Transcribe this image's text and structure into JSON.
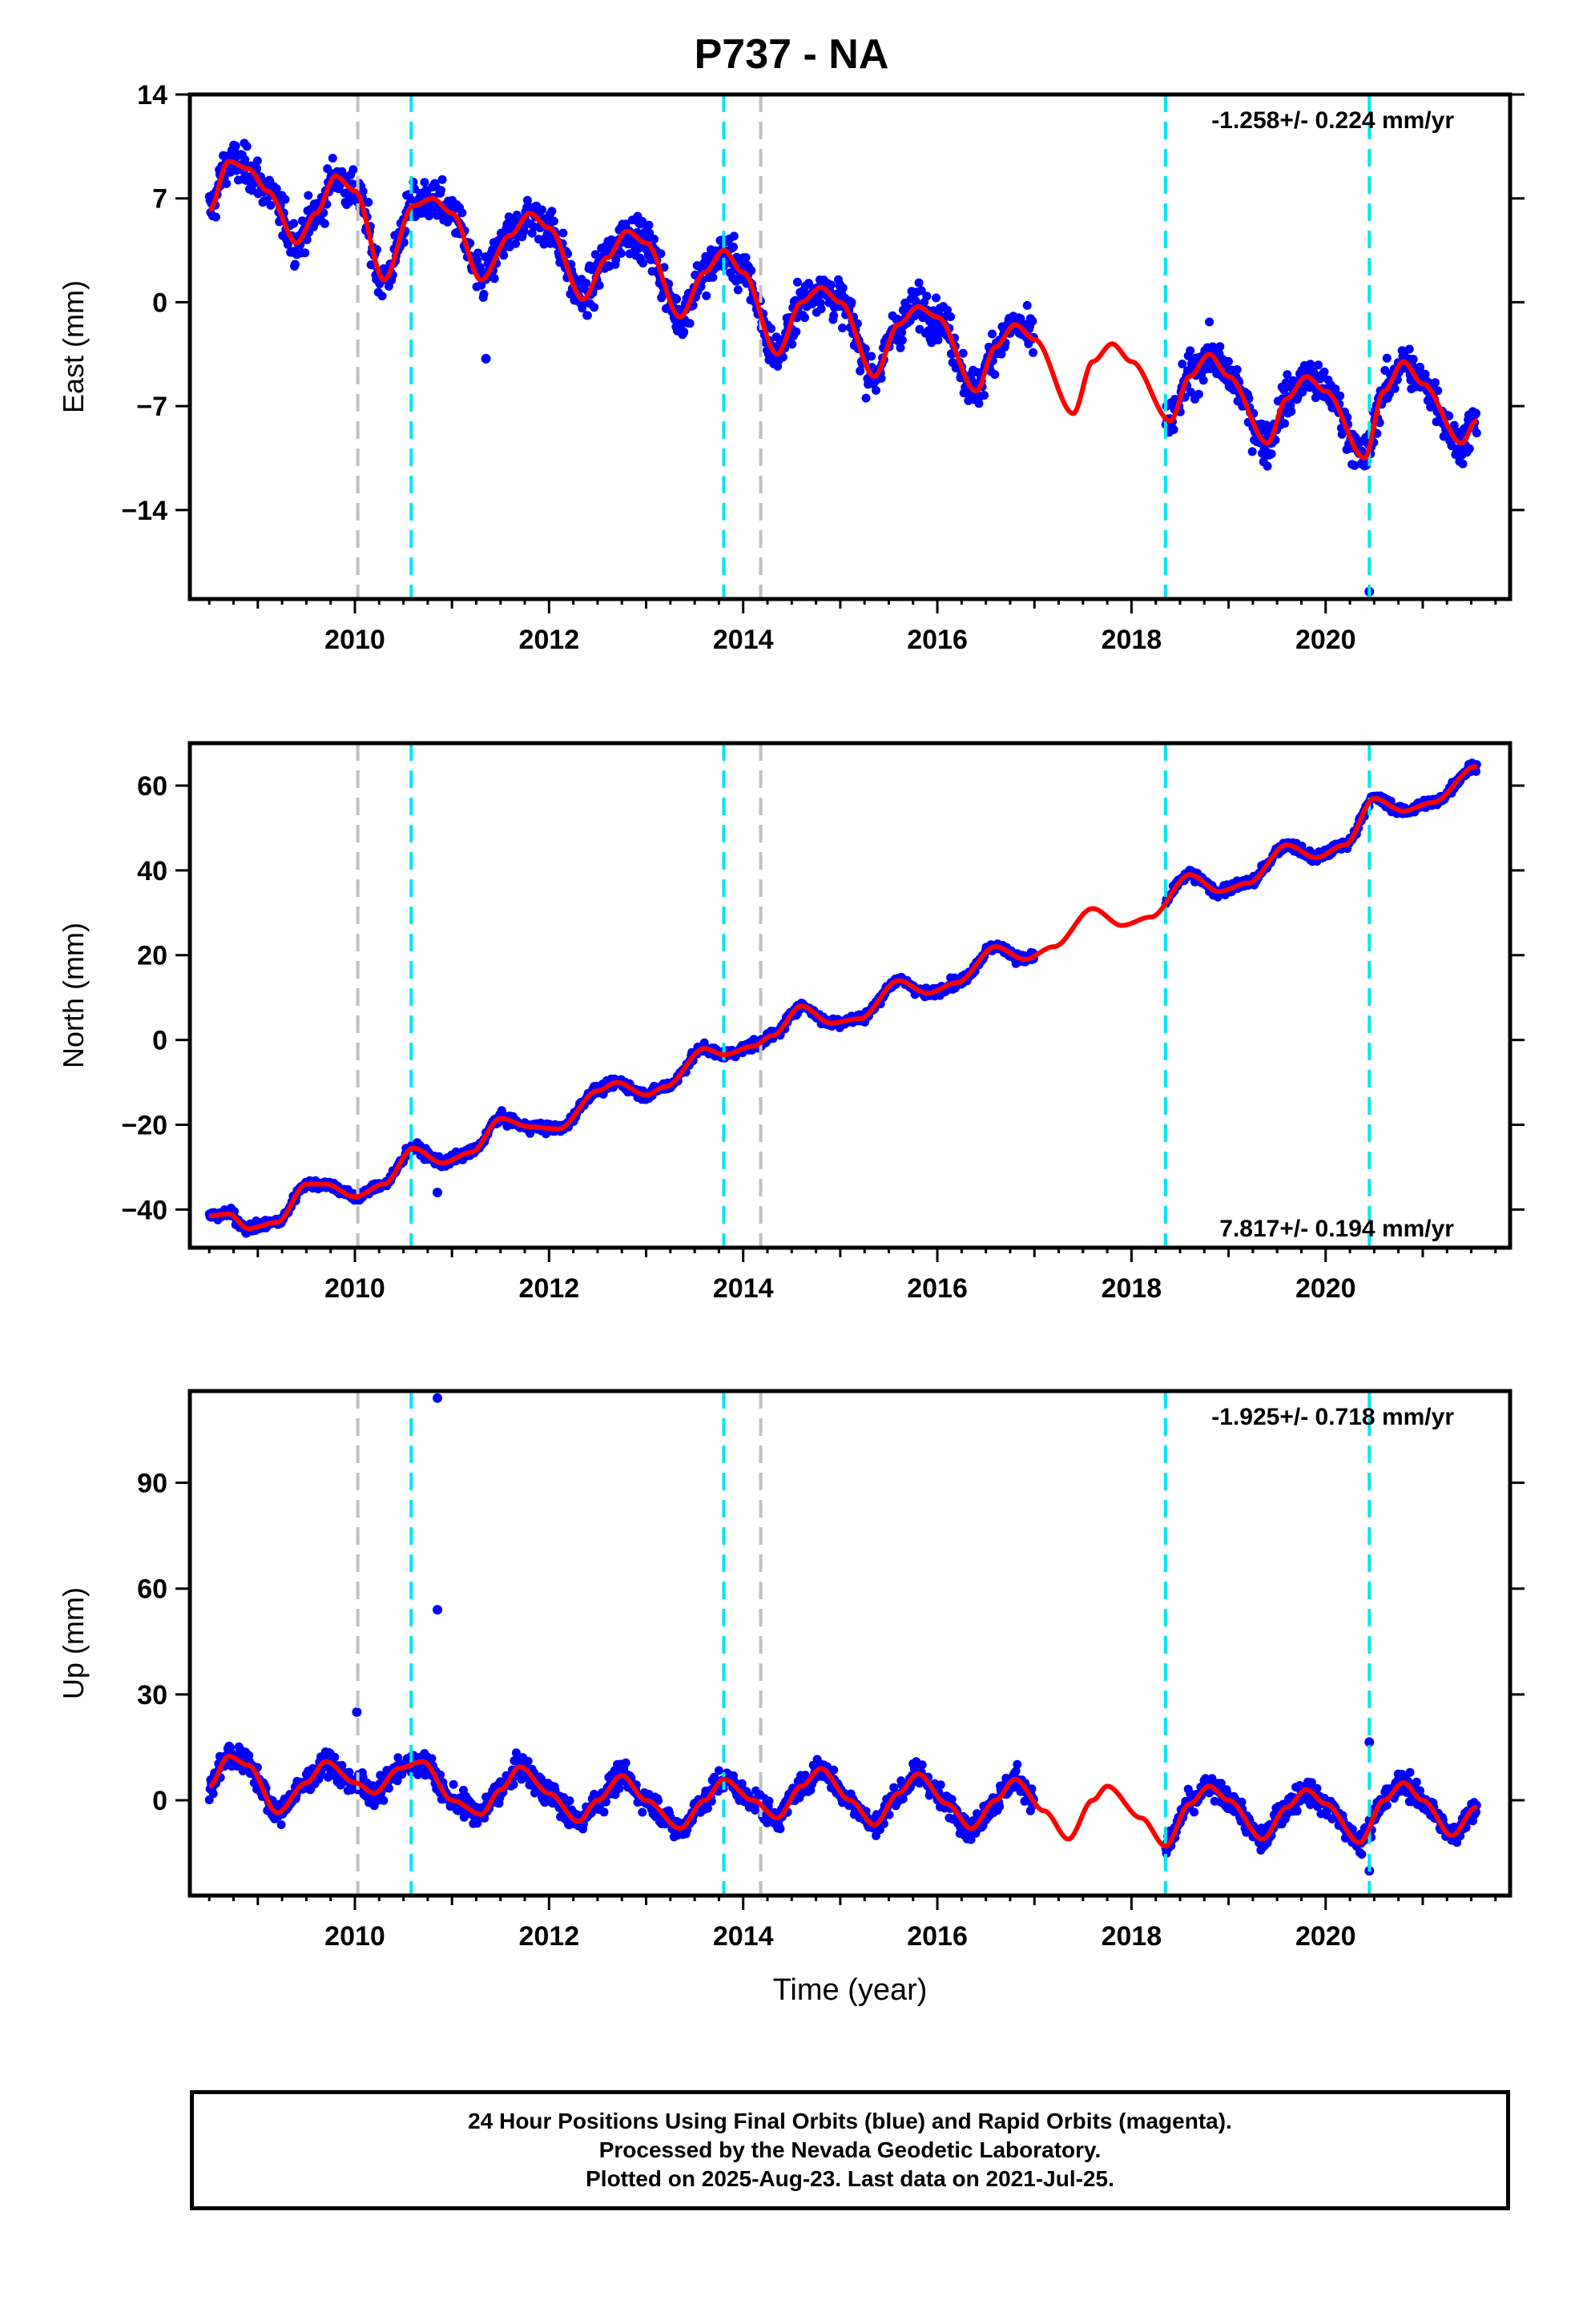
{
  "title": "P737 - NA",
  "caption": [
    "24 Hour Positions Using Final Orbits (blue) and Rapid Orbits (magenta).",
    "Processed by the Nevada Geodetic Laboratory.",
    "Plotted on 2025-Aug-23. Last data on 2021-Jul-25."
  ],
  "colors": {
    "points": "#0000ff",
    "fit": "#ff0000",
    "offset_equipment": "#00e5ee",
    "offset_other": "#c0c0c0"
  },
  "chart_data": [
    {
      "type": "scatter",
      "name": "east",
      "ylabel": "East (mm)",
      "xlabel": "",
      "xlim": [
        2008.3,
        2021.9
      ],
      "ylim": [
        -20,
        14
      ],
      "yticks": [
        -14,
        -7,
        0,
        7,
        14
      ],
      "ytick_labels": [
        "−14",
        "−7",
        "0",
        "7",
        "14"
      ],
      "xticks": [
        2010,
        2012,
        2014,
        2016,
        2018,
        2020
      ],
      "rate_label": "-1.258+/- 0.224 mm/yr",
      "rate_position": "top-right",
      "rate": -1.258,
      "annual_amplitude": 4.0,
      "scatter": 1.3,
      "fit_points": [
        [
          2008.5,
          6.2
        ],
        [
          2008.7,
          9.5
        ],
        [
          2008.9,
          9.0
        ],
        [
          2009.1,
          7.5
        ],
        [
          2009.4,
          4.0
        ],
        [
          2009.6,
          6.0
        ],
        [
          2009.8,
          8.5
        ],
        [
          2010.0,
          7.5
        ],
        [
          2010.3,
          1.5
        ],
        [
          2010.6,
          6.5
        ],
        [
          2010.8,
          7.0
        ],
        [
          2011.0,
          6.0
        ],
        [
          2011.3,
          1.5
        ],
        [
          2011.6,
          4.5
        ],
        [
          2011.8,
          6.0
        ],
        [
          2012.0,
          5.0
        ],
        [
          2012.35,
          0.2
        ],
        [
          2012.6,
          3.0
        ],
        [
          2012.8,
          4.8
        ],
        [
          2013.0,
          4.0
        ],
        [
          2013.35,
          -1.0
        ],
        [
          2013.6,
          2.0
        ],
        [
          2013.8,
          3.5
        ],
        [
          2014.0,
          2.0
        ],
        [
          2014.35,
          -3.5
        ],
        [
          2014.6,
          0.0
        ],
        [
          2014.8,
          1.0
        ],
        [
          2015.0,
          0.0
        ],
        [
          2015.35,
          -5.0
        ],
        [
          2015.6,
          -1.5
        ],
        [
          2015.8,
          -0.3
        ],
        [
          2016.0,
          -1.0
        ],
        [
          2016.4,
          -6.0
        ],
        [
          2016.6,
          -3.0
        ],
        [
          2016.8,
          -1.5
        ],
        [
          2017.0,
          -2.5
        ],
        [
          2017.4,
          -7.5
        ],
        [
          2017.6,
          -4.0
        ],
        [
          2017.8,
          -2.8
        ],
        [
          2018.0,
          -4.0
        ],
        [
          2018.4,
          -8.0
        ],
        [
          2018.6,
          -5.0
        ],
        [
          2018.8,
          -3.5
        ],
        [
          2019.0,
          -5.0
        ],
        [
          2019.4,
          -9.5
        ],
        [
          2019.6,
          -6.5
        ],
        [
          2019.8,
          -5.0
        ],
        [
          2020.0,
          -6.0
        ],
        [
          2020.4,
          -10.5
        ],
        [
          2020.6,
          -6.0
        ],
        [
          2020.8,
          -4.0
        ],
        [
          2021.0,
          -5.5
        ],
        [
          2021.4,
          -9.5
        ],
        [
          2021.55,
          -8.0
        ]
      ],
      "outliers": [
        [
          2020.45,
          -19.5
        ],
        [
          2011.35,
          -3.8
        ]
      ]
    },
    {
      "type": "scatter",
      "name": "north",
      "ylabel": "North (mm)",
      "xlabel": "",
      "xlim": [
        2008.3,
        2021.9
      ],
      "ylim": [
        -49,
        70
      ],
      "yticks": [
        -40,
        -20,
        0,
        20,
        40,
        60
      ],
      "ytick_labels": [
        "−40",
        "−20",
        "0",
        "20",
        "40",
        "60"
      ],
      "xticks": [
        2010,
        2012,
        2014,
        2016,
        2018,
        2020
      ],
      "rate_label": "7.817+/- 0.194 mm/yr",
      "rate_position": "bottom-right",
      "rate": 7.817,
      "annual_amplitude": 2.5,
      "scatter": 1.1,
      "fit_points": [
        [
          2008.5,
          -41.5
        ],
        [
          2008.7,
          -41.0
        ],
        [
          2008.9,
          -44.5
        ],
        [
          2009.2,
          -43.0
        ],
        [
          2009.5,
          -34.0
        ],
        [
          2009.7,
          -34.0
        ],
        [
          2010.0,
          -37.0
        ],
        [
          2010.3,
          -34.0
        ],
        [
          2010.6,
          -25.5
        ],
        [
          2010.9,
          -29.0
        ],
        [
          2011.2,
          -26.5
        ],
        [
          2011.5,
          -18.5
        ],
        [
          2011.8,
          -20.5
        ],
        [
          2012.1,
          -21.0
        ],
        [
          2012.5,
          -12.0
        ],
        [
          2012.7,
          -10.0
        ],
        [
          2013.0,
          -13.0
        ],
        [
          2013.2,
          -11.0
        ],
        [
          2013.6,
          -2.0
        ],
        [
          2013.8,
          -3.5
        ],
        [
          2014.1,
          -1.5
        ],
        [
          2014.3,
          1.0
        ],
        [
          2014.6,
          8.0
        ],
        [
          2014.9,
          4.0
        ],
        [
          2015.2,
          5.0
        ],
        [
          2015.6,
          14.0
        ],
        [
          2015.9,
          11.0
        ],
        [
          2016.2,
          13.5
        ],
        [
          2016.6,
          22.0
        ],
        [
          2016.9,
          19.0
        ],
        [
          2017.2,
          22.0
        ],
        [
          2017.6,
          31.0
        ],
        [
          2017.9,
          27.0
        ],
        [
          2018.2,
          29.0
        ],
        [
          2018.6,
          39.0
        ],
        [
          2018.9,
          35.0
        ],
        [
          2019.2,
          37.0
        ],
        [
          2019.6,
          46.0
        ],
        [
          2019.9,
          43.0
        ],
        [
          2020.2,
          46.0
        ],
        [
          2020.5,
          57.0
        ],
        [
          2020.8,
          54.0
        ],
        [
          2021.1,
          56.0
        ],
        [
          2021.55,
          64.5
        ]
      ],
      "outliers": [
        [
          2010.85,
          -36.0
        ]
      ]
    },
    {
      "type": "scatter",
      "name": "up",
      "ylabel": "Up (mm)",
      "xlabel": "Time (year)",
      "xlim": [
        2008.3,
        2021.9
      ],
      "ylim": [
        -27,
        116
      ],
      "yticks": [
        0,
        30,
        60,
        90
      ],
      "ytick_labels": [
        "0",
        "30",
        "60",
        "90"
      ],
      "xticks": [
        2010,
        2012,
        2014,
        2016,
        2018,
        2020
      ],
      "rate_label": "-1.925+/- 0.718 mm/yr",
      "rate_position": "top-right",
      "rate": -1.925,
      "annual_amplitude": 8.0,
      "scatter": 3.2,
      "fit_points": [
        [
          2008.5,
          4.0
        ],
        [
          2008.7,
          12.5
        ],
        [
          2008.9,
          10.0
        ],
        [
          2009.2,
          -3.5
        ],
        [
          2009.5,
          5.0
        ],
        [
          2009.7,
          11.0
        ],
        [
          2010.0,
          5.0
        ],
        [
          2010.2,
          2.0
        ],
        [
          2010.45,
          9.0
        ],
        [
          2010.7,
          11.0
        ],
        [
          2011.0,
          0.0
        ],
        [
          2011.3,
          -4.0
        ],
        [
          2011.5,
          3.0
        ],
        [
          2011.7,
          9.5
        ],
        [
          2012.0,
          2.0
        ],
        [
          2012.3,
          -6.0
        ],
        [
          2012.5,
          0.0
        ],
        [
          2012.75,
          7.0
        ],
        [
          2013.0,
          0.0
        ],
        [
          2013.35,
          -8.0
        ],
        [
          2013.6,
          0.0
        ],
        [
          2013.8,
          6.0
        ],
        [
          2014.1,
          0.0
        ],
        [
          2014.35,
          -5.0
        ],
        [
          2014.6,
          4.0
        ],
        [
          2014.8,
          9.0
        ],
        [
          2015.1,
          0.0
        ],
        [
          2015.35,
          -7.0
        ],
        [
          2015.6,
          2.0
        ],
        [
          2015.8,
          7.5
        ],
        [
          2016.1,
          -1.0
        ],
        [
          2016.35,
          -8.0
        ],
        [
          2016.6,
          0.0
        ],
        [
          2016.8,
          6.0
        ],
        [
          2017.1,
          -3.0
        ],
        [
          2017.35,
          -11.0
        ],
        [
          2017.6,
          0.0
        ],
        [
          2017.75,
          4.0
        ],
        [
          2018.1,
          -5.0
        ],
        [
          2018.35,
          -13.0
        ],
        [
          2018.6,
          -1.0
        ],
        [
          2018.8,
          4.0
        ],
        [
          2019.0,
          0.0
        ],
        [
          2019.35,
          -11.0
        ],
        [
          2019.6,
          -2.0
        ],
        [
          2019.8,
          3.0
        ],
        [
          2020.0,
          -1.0
        ],
        [
          2020.35,
          -12.0
        ],
        [
          2020.6,
          0.0
        ],
        [
          2020.8,
          5.0
        ],
        [
          2021.0,
          0.0
        ],
        [
          2021.3,
          -10.0
        ],
        [
          2021.55,
          -2.0
        ]
      ],
      "outliers": [
        [
          2010.85,
          114.0
        ],
        [
          2010.85,
          54.0
        ],
        [
          2010.02,
          25.0
        ],
        [
          2020.45,
          16.5
        ],
        [
          2020.45,
          -20.0
        ]
      ]
    }
  ],
  "offsets": [
    {
      "year": 2010.03,
      "kind": "other"
    },
    {
      "year": 2010.58,
      "kind": "equipment"
    },
    {
      "year": 2013.8,
      "kind": "equipment"
    },
    {
      "year": 2014.18,
      "kind": "other"
    },
    {
      "year": 2018.35,
      "kind": "equipment"
    },
    {
      "year": 2020.45,
      "kind": "equipment"
    }
  ],
  "data_range": {
    "start": 2008.5,
    "end": 2021.56,
    "gap": [
      2017.0,
      2018.35
    ]
  }
}
